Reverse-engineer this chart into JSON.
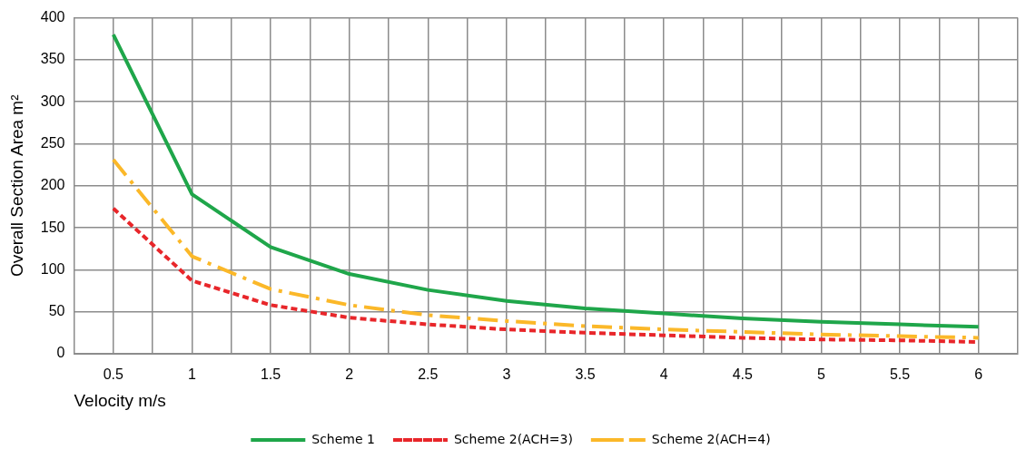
{
  "chart_data": {
    "type": "line",
    "xlabel": "Velocity m/s",
    "ylabel": "Overall Section Area m²",
    "categories": [
      "0.5",
      "1",
      "1.5",
      "2",
      "2.5",
      "3",
      "3.5",
      "4",
      "4.5",
      "5",
      "5.5",
      "6"
    ],
    "ylim": [
      0,
      400
    ],
    "yticks": [
      0,
      50,
      100,
      150,
      200,
      250,
      300,
      350,
      400
    ],
    "grid": true,
    "legend": "bottom",
    "marker": "none",
    "series": [
      {
        "name": "Scheme 1",
        "color": "#1fa64a",
        "line_style": "solid",
        "values": [
          380,
          190,
          127,
          95,
          76,
          63,
          54,
          48,
          42,
          38,
          35,
          32
        ]
      },
      {
        "name": "Scheme 2(ACH=3)",
        "color": "#e8262a",
        "line_style": "dashed",
        "values": [
          173,
          87,
          58,
          43,
          35,
          29,
          25,
          22,
          19,
          17,
          16,
          14
        ]
      },
      {
        "name": "Scheme 2(ACH=4)",
        "color": "#fbb829",
        "line_style": "dashdot",
        "values": [
          231,
          116,
          77,
          58,
          46,
          39,
          33,
          29,
          26,
          23,
          21,
          19
        ]
      }
    ]
  }
}
